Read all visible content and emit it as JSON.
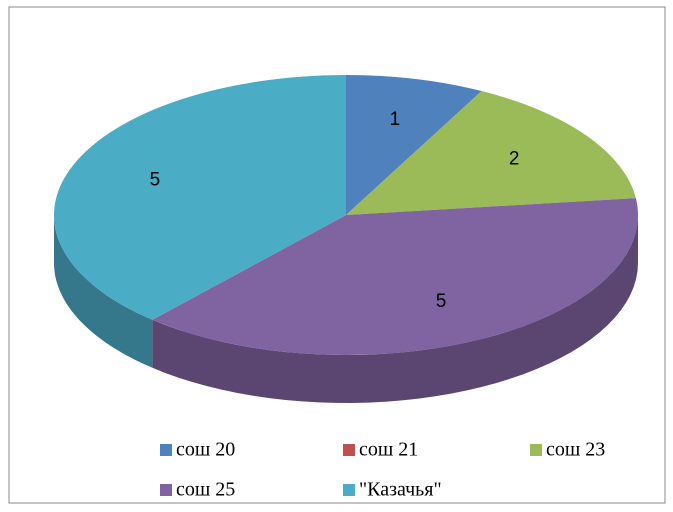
{
  "chart_data": {
    "type": "pie",
    "categories": [
      "сош 20",
      "сош 21",
      "сош 23",
      "сош 25",
      "\"Казачья\""
    ],
    "values": [
      1,
      0,
      2,
      5,
      5
    ],
    "colors": [
      "#4f81bd",
      "#c0504d",
      "#9bbb59",
      "#8064a2",
      "#4bacc6"
    ],
    "legend": "bottom"
  }
}
